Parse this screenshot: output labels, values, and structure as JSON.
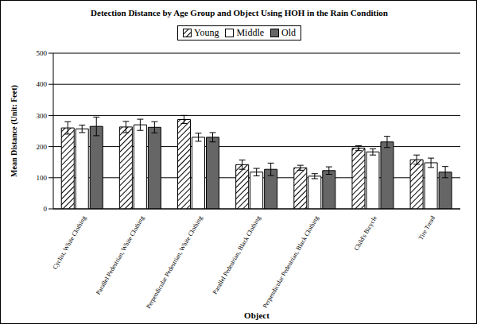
{
  "chart_data": {
    "type": "bar",
    "title": "Detection Distance by Age Group and Object Using HOH in the Rain Condition",
    "x_label": "Object",
    "y_label": "Mean Distance (Unit: Feet)",
    "categories": [
      "Cyclist, White Clothing",
      "Parallel Pedestrian, White Clothing",
      "Perpendicular Pedestrian, White Clothing",
      "Parallel Pedestrian, Black Clothing",
      "Perpendicular Pedestrian, Black Clothing",
      "Child's Bicycle",
      "Tire Tread"
    ],
    "series": [
      {
        "name": "Young",
        "color": "#000000",
        "values": [
          260,
          263,
          287,
          142,
          132,
          195,
          158
        ],
        "errors": [
          20,
          18,
          13,
          15,
          8,
          8,
          15
        ]
      },
      {
        "name": "Middle",
        "color": "#ffffff",
        "values": [
          257,
          270,
          230,
          118,
          105,
          183,
          148
        ],
        "errors": [
          12,
          18,
          13,
          12,
          8,
          10,
          15
        ]
      },
      {
        "name": "Old",
        "color": "#666666",
        "values": [
          265,
          262,
          230,
          127,
          123,
          215,
          118
        ],
        "errors": [
          30,
          18,
          15,
          20,
          12,
          18,
          18
        ]
      }
    ],
    "ylim": [
      0,
      500
    ],
    "yticks": [
      0,
      100,
      200,
      300,
      400,
      500
    ],
    "grid": true,
    "legend": "top"
  }
}
